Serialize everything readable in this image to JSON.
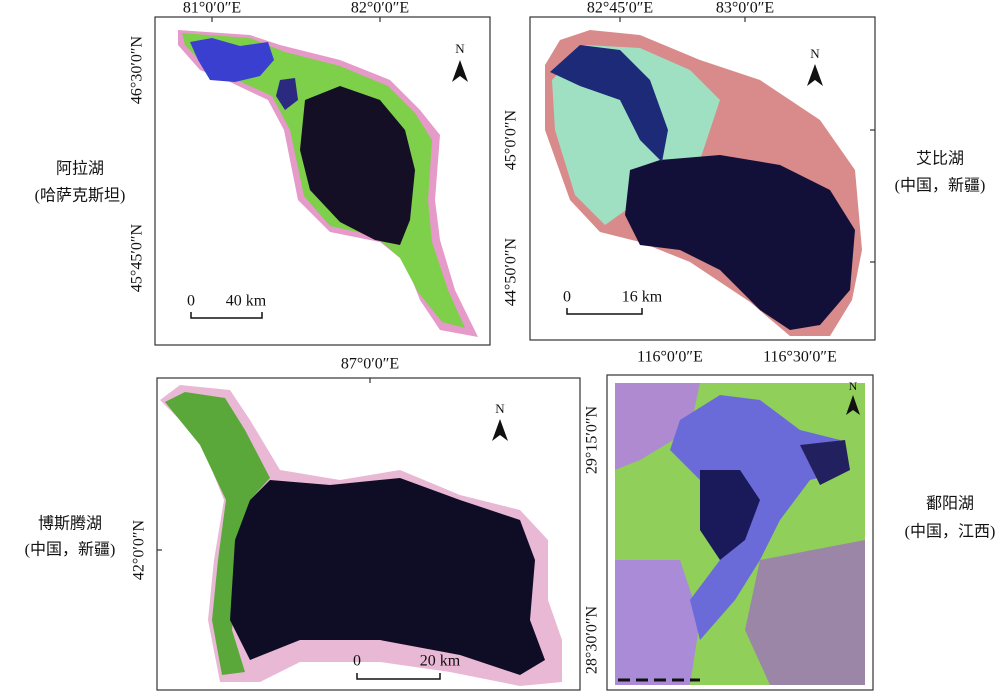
{
  "panels": [
    {
      "name": "阿拉湖",
      "region": "(哈萨克斯坦)",
      "lon_labels": [
        "81°0′0″E",
        "82°0′0″E"
      ],
      "lat_labels": [
        "46°30′0″N",
        "45°45′0″N"
      ],
      "scale": [
        "0",
        "40 km"
      ],
      "north": "N"
    },
    {
      "name": "艾比湖",
      "region": "(中国，新疆)",
      "lon_labels": [
        "82°45′0″E",
        "83°0′0″E"
      ],
      "lat_labels": [
        "45°0′0″N",
        "44°50′0″N"
      ],
      "scale": [
        "0",
        "16 km"
      ],
      "north": "N"
    },
    {
      "name": "博斯腾湖",
      "region": "(中国，新疆)",
      "lon_labels": [
        "87°0′0″E"
      ],
      "lat_labels": [
        "42°0′0″N"
      ],
      "scale": [
        "0",
        "20 km"
      ],
      "north": "N"
    },
    {
      "name": "鄱阳湖",
      "region": "(中国，江西)",
      "lon_labels": [
        "116°0′0″E",
        "116°30′0″E"
      ],
      "lat_labels": [
        "29°15′0″N",
        "28°30′0″N"
      ],
      "north": "N"
    }
  ]
}
